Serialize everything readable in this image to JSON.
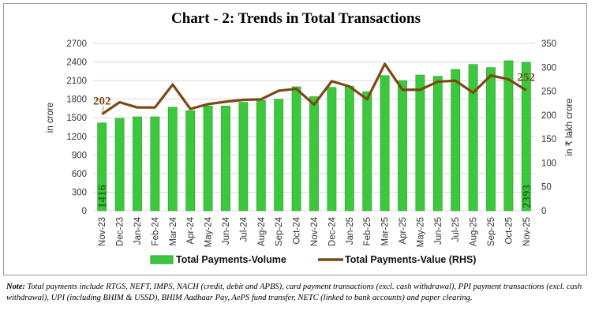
{
  "title": "Chart - 2: Trends in Total Transactions",
  "note_label": "Note:",
  "note_text": "Total payments include RTGS, NEFT, IMPS, NACH (credit, debit and APBS), card payment transactions (excl. cash withdrawal), PPI payment transactions (excl. cash withdrawal), UPI (including BHIM & USSD), BHIM Aadhaar Pay, AePS fund transfer, NETC (linked to bank accounts) and paper clearing.",
  "colors": {
    "bar": "#3cc83c",
    "bar_edge": "#2a9a2a",
    "line": "#7a4a12",
    "grid": "#d8d8d8"
  },
  "chart_data": {
    "type": "bar",
    "title": "Chart - 2: Trends in Total Transactions",
    "categories": [
      "Nov-23",
      "Dec-23",
      "Jan-24",
      "Feb-24",
      "Mar-24",
      "Apr-24",
      "May-24",
      "Jun-24",
      "Jul-24",
      "Aug-24",
      "Sep-24",
      "Oct-24",
      "Nov-24",
      "Dec-24",
      "Jan-25",
      "Feb-25",
      "Mar-25",
      "Apr-25",
      "May-25",
      "Jun-25",
      "Jul-25",
      "Aug-25",
      "Sep-25",
      "Oct-25",
      "Nov-25"
    ],
    "ylabel": "in crore",
    "y2label": "in ₹ lakh crore",
    "ylim": [
      0,
      2700
    ],
    "yticks": [
      0,
      300,
      600,
      900,
      1200,
      1500,
      1800,
      2100,
      2400,
      2700
    ],
    "y2lim": [
      0,
      350
    ],
    "y2ticks": [
      0,
      50,
      100,
      150,
      200,
      250,
      300,
      350
    ],
    "grid": true,
    "legend_position": "bottom",
    "series": [
      {
        "name": "Total Payments-Volume",
        "type": "bar",
        "axis": "left",
        "values": [
          1416,
          1490,
          1515,
          1515,
          1670,
          1615,
          1690,
          1690,
          1750,
          1780,
          1800,
          2000,
          1840,
          1990,
          2010,
          1920,
          2180,
          2100,
          2190,
          2170,
          2280,
          2360,
          2310,
          2420,
          2393
        ]
      },
      {
        "name": "Total Payments-Value (RHS)",
        "type": "line",
        "axis": "right",
        "values": [
          202,
          227,
          216,
          216,
          264,
          213,
          223,
          228,
          232,
          233,
          251,
          255,
          222,
          271,
          260,
          233,
          307,
          253,
          253,
          270,
          272,
          247,
          283,
          275,
          252
        ]
      }
    ],
    "data_labels": [
      {
        "series": "Total Payments-Volume",
        "category": "Nov-23",
        "text": "1416"
      },
      {
        "series": "Total Payments-Volume",
        "category": "Nov-25",
        "text": "2393"
      },
      {
        "series": "Total Payments-Value (RHS)",
        "category": "Nov-23",
        "text": "202"
      },
      {
        "series": "Total Payments-Value (RHS)",
        "category": "Nov-25",
        "text": "252"
      }
    ]
  }
}
